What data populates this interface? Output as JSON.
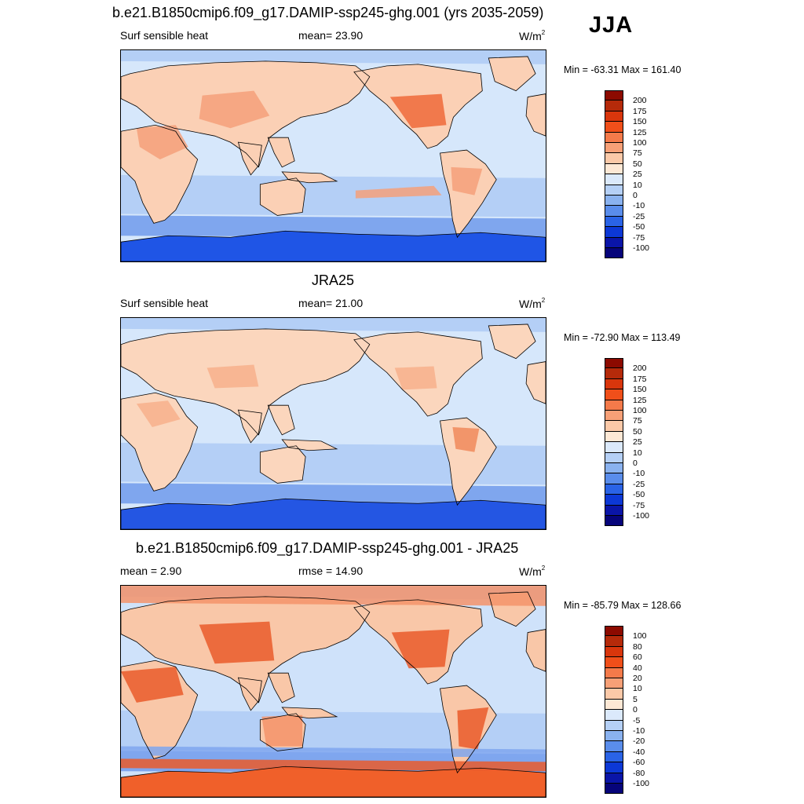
{
  "season": "JJA",
  "panels": [
    {
      "title": "b.e21.B1850cmip6.f09_g17.DAMIP-ssp245-ghg.001 (yrs 2035-2059)",
      "left_label": "Surf sensible heat",
      "center_label": "mean=  23.90",
      "unit": "W/m",
      "unit_sup": "2",
      "minmax": "Min = -63.31 Max = 161.40",
      "colorbar": {
        "labels": [
          "200",
          "175",
          "150",
          "125",
          "100",
          "75",
          "50",
          "25",
          "10",
          "0",
          "-10",
          "-25",
          "-50",
          "-75",
          "-100"
        ],
        "colors": [
          "#8c0a00",
          "#b52a0a",
          "#d9360c",
          "#f04f1a",
          "#f47a4a",
          "#f7a077",
          "#fbc9a8",
          "#fde8d5",
          "#dbe9fb",
          "#b5d0f6",
          "#8ab2ef",
          "#5a8deb",
          "#2a63e6",
          "#0c38d6",
          "#0a15a8",
          "#06047a"
        ]
      },
      "map_palette": {
        "ocean": "#d6e7fb",
        "cool": "#b4cff6",
        "cold": "#7fa6ee",
        "antarctica": "#1f55e6",
        "land": "#fbd0b5",
        "warm": "#f5a07a",
        "hot": "#ee6a3a"
      }
    },
    {
      "title": "JRA25",
      "left_label": "Surf sensible heat",
      "center_label": "mean=  21.00",
      "unit": "W/m",
      "unit_sup": "2",
      "minmax": "Min = -72.90 Max = 113.49",
      "colorbar": {
        "labels": [
          "200",
          "175",
          "150",
          "125",
          "100",
          "75",
          "50",
          "25",
          "10",
          "0",
          "-10",
          "-25",
          "-50",
          "-75",
          "-100"
        ],
        "colors": [
          "#8c0a00",
          "#b52a0a",
          "#d9360c",
          "#f04f1a",
          "#f47a4a",
          "#f7a077",
          "#fbc9a8",
          "#fde8d5",
          "#dbe9fb",
          "#b5d0f6",
          "#8ab2ef",
          "#5a8deb",
          "#2a63e6",
          "#0c38d6",
          "#0a15a8",
          "#06047a"
        ]
      },
      "map_palette": {
        "ocean": "#d6e7fb",
        "cool": "#b4cff6",
        "cold": "#7fa6ee",
        "antarctica": "#2456e3",
        "land": "#fbd6bd",
        "warm": "#f7b08c",
        "hot": "#f08a5c"
      }
    },
    {
      "title": "b.e21.B1850cmip6.f09_g17.DAMIP-ssp245-ghg.001 - JRA25",
      "left_label": "mean =   2.90",
      "center_label": "rmse =  14.90",
      "unit": "W/m",
      "unit_sup": "2",
      "minmax": "Min = -85.79 Max = 128.66",
      "colorbar": {
        "labels": [
          "100",
          "80",
          "60",
          "40",
          "20",
          "10",
          "5",
          "0",
          "-5",
          "-10",
          "-20",
          "-40",
          "-60",
          "-80",
          "-100"
        ],
        "colors": [
          "#8c0a00",
          "#b52a0a",
          "#d9360c",
          "#f04f1a",
          "#f47a4a",
          "#f7a077",
          "#fbc9a8",
          "#fde8d5",
          "#dbe9fb",
          "#b5d0f6",
          "#8ab2ef",
          "#5a8deb",
          "#2a63e6",
          "#0c38d6",
          "#0a15a8",
          "#06047a"
        ]
      },
      "map_palette": {
        "ocean": "#cfe2fa",
        "cool": "#b4cff6",
        "cold": "#7fa6ee",
        "antarctica": "#f0602a",
        "land": "#f9c7a8",
        "warm": "#f5936a",
        "hot": "#ea5a2a"
      }
    }
  ]
}
